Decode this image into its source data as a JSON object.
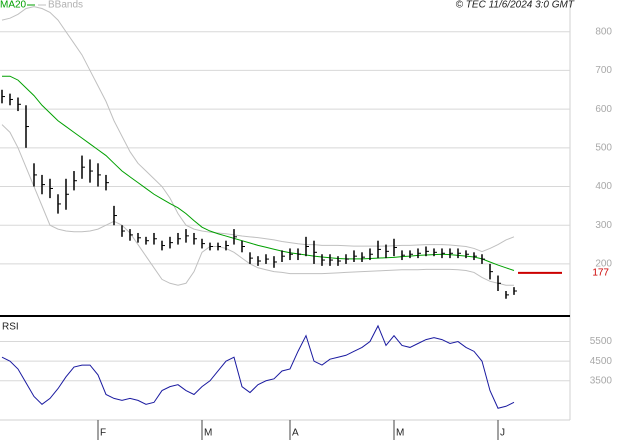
{
  "chart_data": [
    {
      "type": "ohlc",
      "source": "© TEC 11/6/2024 3:0 GMT",
      "ylim": [
        68,
        882
      ],
      "yticks": [
        200,
        300,
        400,
        500,
        600,
        700,
        800
      ],
      "grid": true,
      "bar_color": "#000000",
      "high": [
        650,
        640,
        630,
        610,
        460,
        430,
        420,
        380,
        420,
        440,
        480,
        470,
        460,
        430,
        350,
        300,
        290,
        280,
        270,
        280,
        260,
        270,
        280,
        290,
        280,
        265,
        255,
        255,
        260,
        290,
        260,
        230,
        220,
        225,
        220,
        235,
        240,
        240,
        270,
        260,
        225,
        225,
        220,
        225,
        235,
        230,
        240,
        260,
        250,
        265,
        235,
        235,
        240,
        245,
        240,
        240,
        240,
        240,
        235,
        230,
        225,
        200,
        170,
        130,
        140
      ],
      "low": [
        615,
        610,
        595,
        500,
        400,
        380,
        370,
        330,
        340,
        390,
        420,
        410,
        400,
        390,
        300,
        270,
        260,
        255,
        250,
        250,
        235,
        240,
        250,
        255,
        250,
        240,
        235,
        235,
        235,
        250,
        230,
        200,
        195,
        200,
        190,
        205,
        210,
        210,
        220,
        200,
        195,
        195,
        195,
        200,
        205,
        205,
        210,
        215,
        215,
        220,
        210,
        215,
        215,
        220,
        220,
        215,
        215,
        215,
        215,
        210,
        200,
        160,
        130,
        110,
        120
      ],
      "series": [
        {
          "name": "MA20",
          "color": "#00a000",
          "values": [
            685,
            685,
            675,
            655,
            635,
            610,
            590,
            570,
            555,
            540,
            525,
            510,
            495,
            480,
            460,
            440,
            425,
            410,
            395,
            380,
            368,
            356,
            345,
            330,
            312,
            295,
            285,
            278,
            272,
            266,
            260,
            254,
            248,
            243,
            238,
            233,
            229,
            226,
            223,
            220,
            218,
            216,
            214,
            213,
            213,
            213,
            214,
            215,
            216,
            217,
            219,
            220,
            222,
            223,
            224,
            225,
            224,
            222,
            220,
            218,
            213,
            205,
            197,
            190,
            183
          ]
        }
      ],
      "bands": {
        "name": "BBands",
        "color": "#c0c0c0",
        "upper": [
          830,
          835,
          845,
          860,
          865,
          860,
          850,
          830,
          800,
          770,
          740,
          700,
          660,
          620,
          570,
          530,
          490,
          460,
          440,
          420,
          400,
          370,
          330,
          300,
          290,
          285,
          282,
          280,
          278,
          275,
          272,
          270,
          268,
          265,
          262,
          258,
          255,
          252,
          250,
          250,
          248,
          248,
          248,
          247,
          246,
          246,
          246,
          246,
          246,
          247,
          248,
          248,
          249,
          250,
          250,
          250,
          249,
          247,
          245,
          240,
          232,
          240,
          250,
          262,
          270
        ],
        "lower": [
          560,
          540,
          500,
          450,
          400,
          350,
          300,
          290,
          285,
          283,
          283,
          285,
          290,
          300,
          310,
          300,
          280,
          250,
          220,
          190,
          160,
          150,
          145,
          150,
          180,
          230,
          245,
          245,
          240,
          230,
          215,
          200,
          190,
          185,
          180,
          178,
          175,
          175,
          175,
          175,
          175,
          176,
          177,
          178,
          179,
          180,
          181,
          182,
          183,
          184,
          185,
          185,
          185,
          186,
          186,
          186,
          186,
          185,
          183,
          178,
          165,
          155,
          150,
          145,
          145
        ]
      },
      "last_value": 177,
      "last_color": "#cc0000"
    },
    {
      "type": "line",
      "title": "RSI",
      "ylim": [
        15,
        67
      ],
      "yticks": [
        {
          "value": 55,
          "label": "5500"
        },
        {
          "value": 45,
          "label": "4500"
        },
        {
          "value": 35,
          "label": "3500"
        }
      ],
      "grid": true,
      "categories": [
        null,
        null,
        null,
        null,
        null,
        null,
        null,
        null,
        null,
        null,
        null,
        null,
        "F",
        null,
        null,
        null,
        null,
        null,
        null,
        null,
        null,
        null,
        null,
        null,
        null,
        "M",
        null,
        null,
        null,
        null,
        null,
        null,
        null,
        null,
        null,
        null,
        "A",
        null,
        null,
        null,
        null,
        null,
        null,
        null,
        null,
        null,
        null,
        null,
        null,
        "M",
        null,
        null,
        null,
        null,
        null,
        null,
        null,
        null,
        null,
        null,
        null,
        null,
        "J",
        null,
        null
      ],
      "series": [
        {
          "name": "RSI",
          "color": "#1a1aa0",
          "values": [
            47,
            45,
            41,
            34,
            27,
            23,
            26,
            31,
            37,
            42,
            43,
            43,
            38,
            28,
            26,
            25,
            26,
            25,
            23,
            24,
            30,
            32,
            33,
            30,
            28,
            32,
            35,
            40,
            45,
            47,
            32,
            29,
            33,
            35,
            36,
            40,
            41,
            50,
            58,
            45,
            43,
            46,
            47,
            48,
            50,
            52,
            55,
            63,
            53,
            58,
            53,
            52,
            54,
            56,
            57,
            56,
            54,
            55,
            52,
            50,
            45,
            30,
            21,
            22,
            24
          ]
        }
      ]
    }
  ]
}
